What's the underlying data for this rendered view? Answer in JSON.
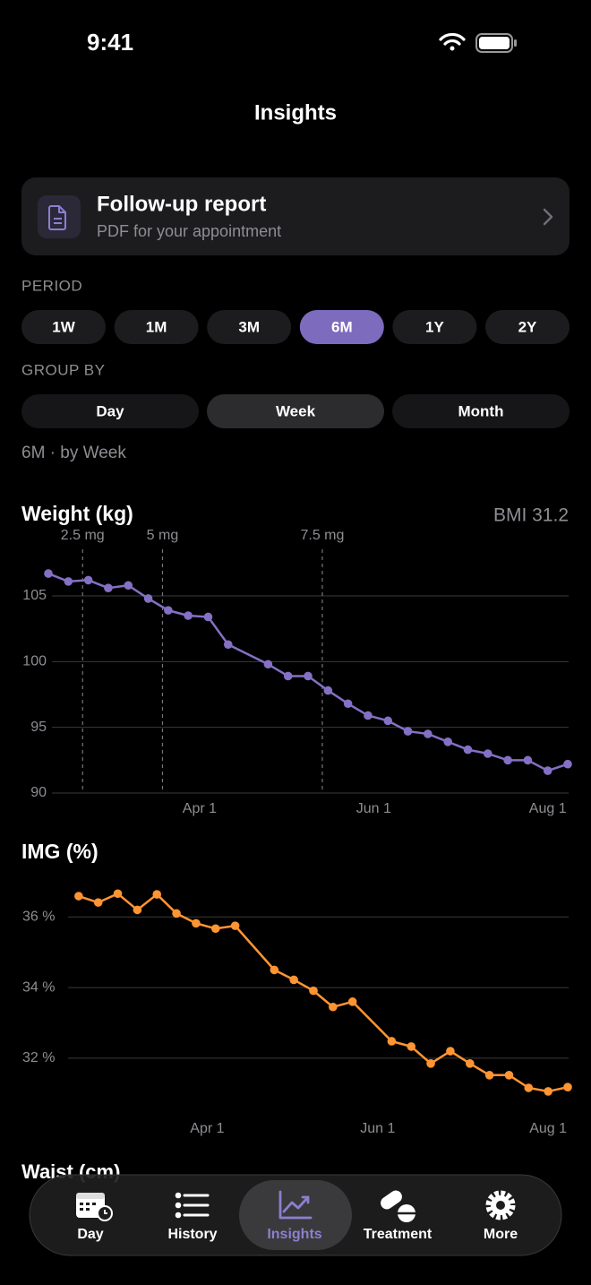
{
  "status_bar": {
    "time": "9:41"
  },
  "header": {
    "title": "Insights"
  },
  "report_card": {
    "title": "Follow-up report",
    "subtitle": "PDF for your appointment"
  },
  "period": {
    "label": "PERIOD",
    "options": [
      "1W",
      "1M",
      "3M",
      "6M",
      "1Y",
      "2Y"
    ],
    "selected": 3
  },
  "group_by": {
    "label": "GROUP BY",
    "options": [
      "Day",
      "Week",
      "Month"
    ],
    "selected": 1
  },
  "summary": "6M · by Week",
  "chart_data": [
    {
      "type": "line",
      "title": "Weight (kg)",
      "subtitle": "BMI 31.2",
      "color": "#8470c4",
      "grid": true,
      "x": [
        38,
        45,
        52,
        59,
        66,
        73,
        80,
        87,
        94,
        101,
        115,
        122,
        129,
        136,
        143,
        150,
        157,
        164,
        171,
        178,
        185,
        192,
        199,
        206,
        213,
        220
      ],
      "values": [
        106.7,
        106.1,
        106.2,
        105.6,
        105.8,
        104.8,
        103.9,
        103.5,
        103.4,
        101.3,
        99.8,
        98.9,
        98.9,
        97.8,
        96.8,
        95.9,
        95.5,
        94.7,
        94.5,
        93.9,
        93.3,
        93.0,
        92.5,
        92.5,
        91.7,
        92.2
      ],
      "xlim": [
        38,
        220
      ],
      "xticks": [
        {
          "value": 91,
          "label": "Apr 1"
        },
        {
          "value": 152,
          "label": "Jun 1"
        },
        {
          "value": 213,
          "label": "Aug 1"
        }
      ],
      "ylim": [
        90,
        108
      ],
      "yticks": [
        90,
        95,
        100,
        105
      ],
      "markers": [
        {
          "x": 50,
          "label": "2.5 mg"
        },
        {
          "x": 78,
          "label": "5 mg"
        },
        {
          "x": 134,
          "label": "7.5 mg"
        }
      ]
    },
    {
      "type": "line",
      "title": "IMG (%)",
      "color": "#ff9433",
      "grid": true,
      "x": [
        45,
        52,
        59,
        66,
        73,
        80,
        87,
        94,
        101,
        115,
        122,
        129,
        136,
        143,
        157,
        164,
        171,
        178,
        185,
        192,
        199,
        206,
        213,
        220
      ],
      "values": [
        36.59,
        36.41,
        36.66,
        36.2,
        36.64,
        36.1,
        35.82,
        35.67,
        35.75,
        34.5,
        34.22,
        33.91,
        33.45,
        33.6,
        32.48,
        32.33,
        31.85,
        32.2,
        31.85,
        31.52,
        31.52,
        31.16,
        31.06,
        31.18
      ],
      "xlim": [
        38,
        220
      ],
      "xticks": [
        {
          "value": 91,
          "label": "Apr 1"
        },
        {
          "value": 152,
          "label": "Jun 1"
        },
        {
          "value": 213,
          "label": "Aug 1"
        }
      ],
      "ylim": [
        30.5,
        37.2
      ],
      "yticks": [
        {
          "value": 32,
          "label": "32 %"
        },
        {
          "value": 34,
          "label": "34 %"
        },
        {
          "value": 36,
          "label": "36 %"
        }
      ]
    }
  ],
  "waist_title": "Waist (cm)",
  "tab_bar": {
    "tabs": [
      "Day",
      "History",
      "Insights",
      "Treatment",
      "More"
    ],
    "selected": 2
  }
}
